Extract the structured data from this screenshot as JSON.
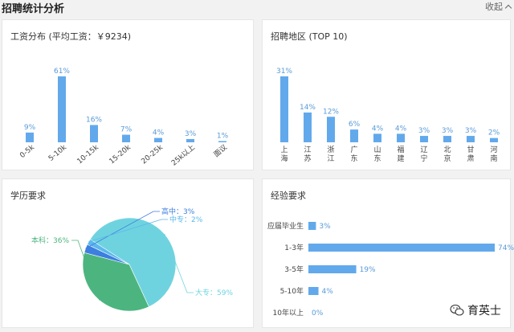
{
  "header": {
    "title": "招聘统计分析",
    "collapse_label": "收起"
  },
  "salary": {
    "title": "工资分布 (平均工资：￥9234)",
    "chart_data": {
      "type": "bar",
      "categories": [
        "0-5k",
        "5-10k",
        "10-15k",
        "15-20k",
        "20-25k",
        "25k以上",
        "面议"
      ],
      "values": [
        9,
        61,
        16,
        7,
        4,
        3,
        1
      ],
      "labels": [
        "9%",
        "61%",
        "16%",
        "7%",
        "4%",
        "3%",
        "1%"
      ],
      "ylim": [
        0,
        61
      ]
    }
  },
  "region": {
    "title": "招聘地区 (TOP 10)",
    "chart_data": {
      "type": "bar",
      "categories": [
        "上海",
        "江苏",
        "浙江",
        "广东",
        "山东",
        "福建",
        "辽宁",
        "北京",
        "甘肃",
        "河南"
      ],
      "values": [
        31,
        14,
        12,
        6,
        4,
        4,
        3,
        3,
        3,
        2
      ],
      "labels": [
        "31%",
        "14%",
        "12%",
        "6%",
        "4%",
        "4%",
        "3%",
        "3%",
        "3%",
        "2%"
      ],
      "ylim": [
        0,
        31
      ]
    }
  },
  "education": {
    "title": "学历要求",
    "chart_data": {
      "type": "pie",
      "categories": [
        "大专",
        "本科",
        "高中",
        "中专"
      ],
      "values": [
        59,
        36,
        3,
        2
      ],
      "labels": [
        "大专：59%",
        "本科：36%",
        "高中：3%",
        "中专：2%"
      ],
      "colors": [
        "#6fd3df",
        "#4cb57f",
        "#3d7fe0",
        "#5ab8ec"
      ]
    }
  },
  "experience": {
    "title": "经验要求",
    "chart_data": {
      "type": "bar",
      "orientation": "horizontal",
      "categories": [
        "应届毕业生",
        "1-3年",
        "3-5年",
        "5-10年",
        "10年以上"
      ],
      "values": [
        3,
        74,
        19,
        4,
        0
      ],
      "labels": [
        "3%",
        "74%",
        "19%",
        "4%",
        "0%"
      ],
      "xlim": [
        0,
        74
      ]
    }
  },
  "colors": {
    "bar": "#62a9ec",
    "label": "#5a9bd8",
    "axis_text": "#444444"
  },
  "watermark": {
    "text": "育英士",
    "icon": "wechat-icon"
  }
}
